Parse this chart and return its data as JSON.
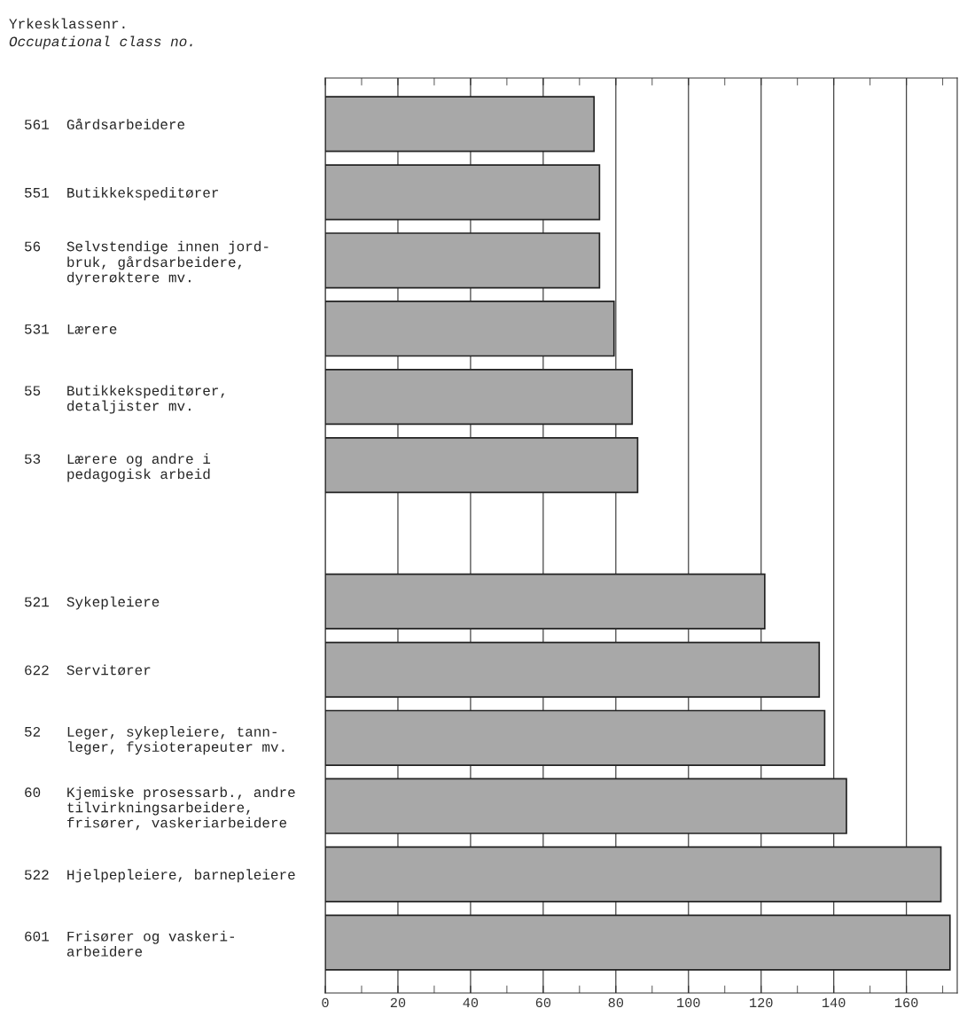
{
  "chart_data": {
    "type": "bar",
    "orientation": "horizontal",
    "title": "Yrkesklassenr.",
    "subtitle": "Occupational class no.",
    "categories": [
      "561  Gårdsarbeidere",
      "551  Butikkekspeditører",
      "56   Selvstendige innen jord-\n     bruk, gårdsarbeidere,\n     dyrerøktere mv.",
      "531  Lærere",
      "55   Butikkekspeditører,\n     detaljister mv.",
      "53   Lærere og andre i\n     pedagogisk arbeid",
      null,
      "521  Sykepleiere",
      "622  Servitører",
      "52   Leger, sykepleiere, tann-\n     leger, fysioterapeuter mv.",
      "60   Kjemiske prosessarb., andre\n     tilvirkningsarbeidere,\n     frisører, vaskeriarbeidere",
      "522  Hjelpepleiere, barnepleiere",
      "601  Frisører og vaskeri-\n     arbeidere"
    ],
    "values": [
      74,
      75.5,
      75.5,
      79.5,
      84.5,
      86,
      null,
      121,
      136,
      137.5,
      143.5,
      169.5,
      172
    ],
    "color": "#a8a8a8",
    "xlim": [
      0,
      174
    ],
    "xticks": [
      0,
      20,
      40,
      60,
      80,
      100,
      120,
      140,
      160
    ],
    "grid": "x"
  }
}
